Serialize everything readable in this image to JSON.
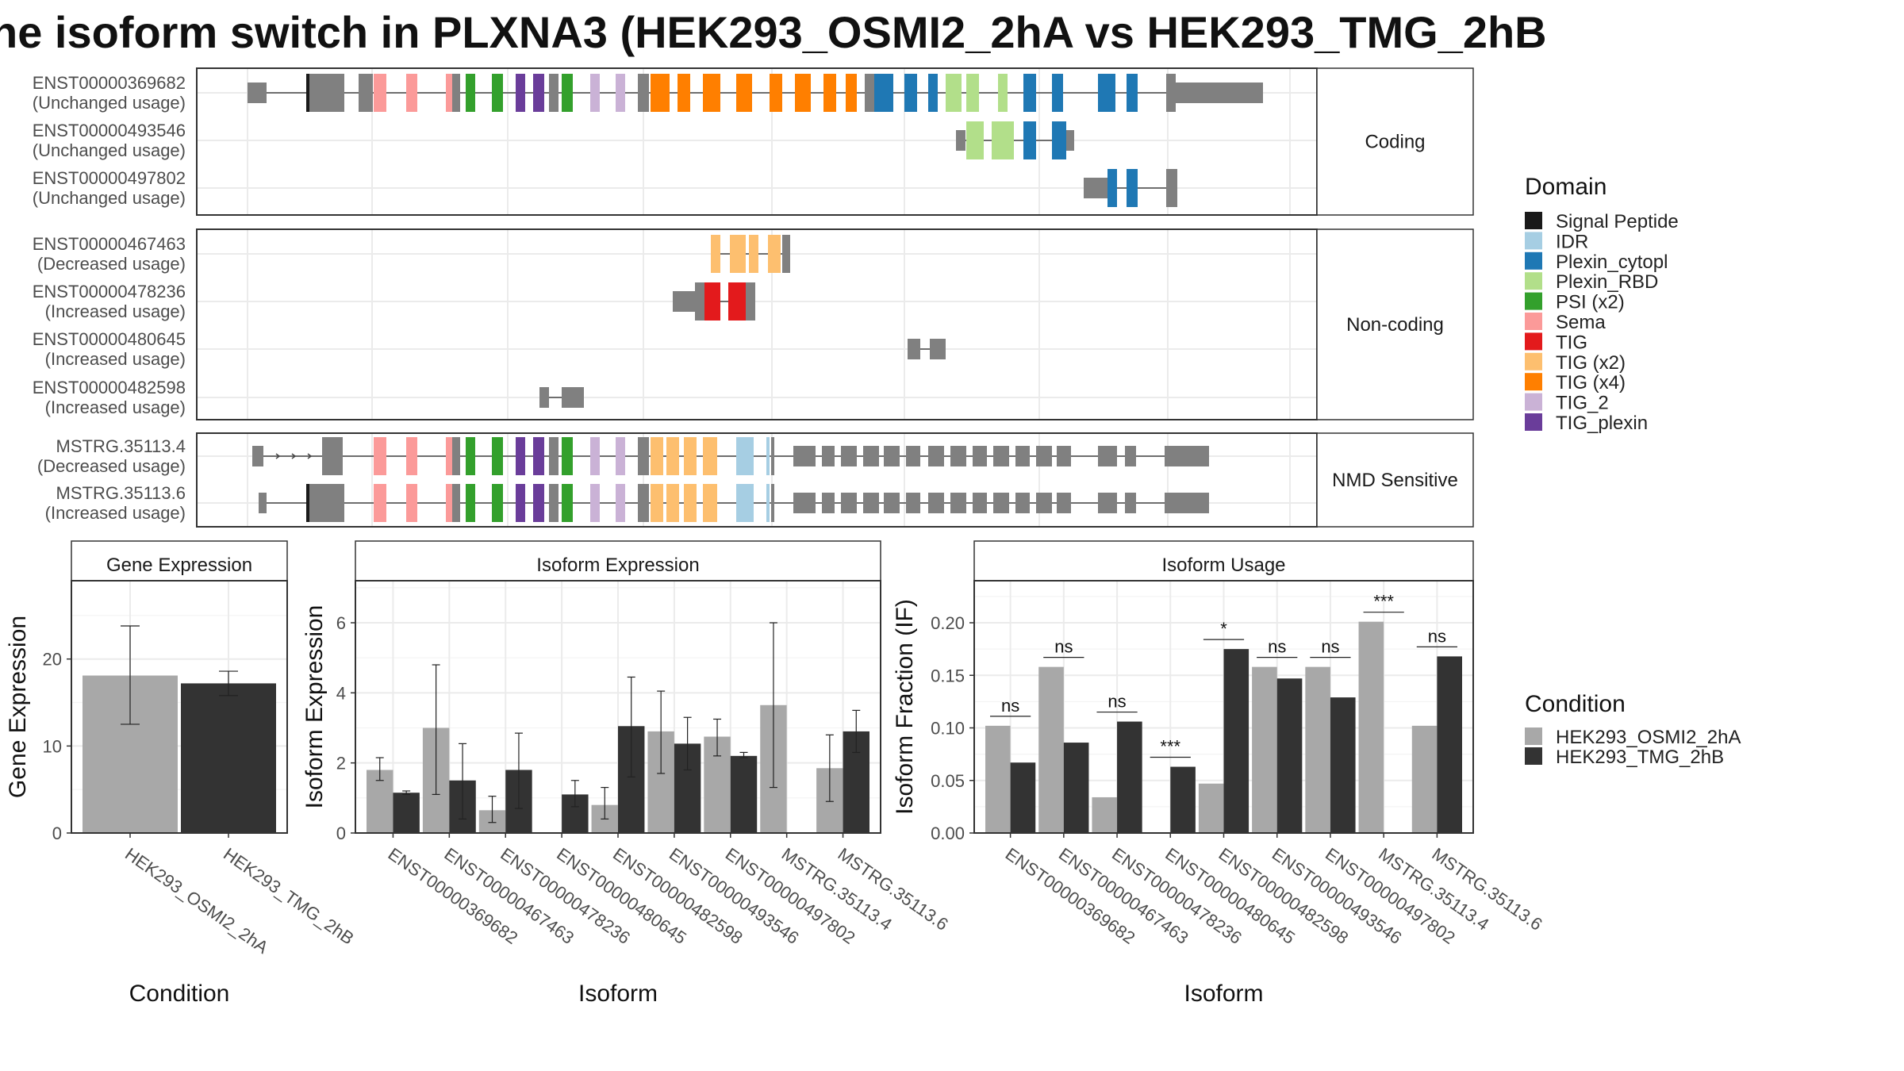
{
  "title": "he isoform switch in PLXNA3 (HEK293_OSMI2_2hA vs HEK293_TMG_2hB",
  "colors": {
    "cond_a": "#a8a8a8",
    "cond_b": "#333333",
    "exon": "#808080",
    "grid": "#ebebeb",
    "strip": "#ffffff"
  },
  "domain_legend": {
    "title": "Domain",
    "items": [
      {
        "label": "Signal Peptide",
        "color": "#1a1a1a"
      },
      {
        "label": "IDR",
        "color": "#a6cee3"
      },
      {
        "label": "Plexin_cytopl",
        "color": "#1f78b4"
      },
      {
        "label": "Plexin_RBD",
        "color": "#b2df8a"
      },
      {
        "label": "PSI (x2)",
        "color": "#33a02c"
      },
      {
        "label": "Sema",
        "color": "#fb9a99"
      },
      {
        "label": "TIG",
        "color": "#e31a1c"
      },
      {
        "label": "TIG (x2)",
        "color": "#fdbf6f"
      },
      {
        "label": "TIG (x4)",
        "color": "#ff7f00"
      },
      {
        "label": "TIG_2",
        "color": "#cab2d6"
      },
      {
        "label": "TIG_plexin",
        "color": "#6a3d9a"
      }
    ]
  },
  "condition_legend": {
    "title": "Condition",
    "items": [
      {
        "label": "HEK293_OSMI2_2hA",
        "color": "#a8a8a8"
      },
      {
        "label": "HEK293_TMG_2hB",
        "color": "#333333"
      }
    ]
  },
  "transcript_panels": [
    {
      "strip": "Coding",
      "transcripts": [
        {
          "id": "ENST00000369682",
          "usage": "(Unchanged usage)"
        },
        {
          "id": "ENST00000493546",
          "usage": "(Unchanged usage)"
        },
        {
          "id": "ENST00000497802",
          "usage": "(Unchanged usage)"
        }
      ]
    },
    {
      "strip": "Non-coding",
      "transcripts": [
        {
          "id": "ENST00000467463",
          "usage": "(Decreased usage)"
        },
        {
          "id": "ENST00000478236",
          "usage": "(Increased usage)"
        },
        {
          "id": "ENST00000480645",
          "usage": "(Increased usage)"
        },
        {
          "id": "ENST00000482598",
          "usage": "(Increased usage)"
        }
      ]
    },
    {
      "strip": "NMD Sensitive",
      "transcripts": [
        {
          "id": "MSTRG.35113.4",
          "usage": "(Decreased usage)"
        },
        {
          "id": "MSTRG.35113.6",
          "usage": "(Increased usage)"
        }
      ]
    }
  ],
  "chart_data": [
    {
      "type": "bar",
      "title": "Gene Expression",
      "xlabel": "Condition",
      "ylabel": "Gene Expression",
      "ylim": [
        0,
        29
      ],
      "yticks": [
        0,
        10,
        20
      ],
      "categories": [
        "HEK293_OSMI2_2hA",
        "HEK293_TMG_2hB"
      ],
      "values": [
        18.1,
        17.2
      ],
      "error_low": [
        12.5,
        15.8
      ],
      "error_high": [
        23.8,
        18.6
      ]
    },
    {
      "type": "bar",
      "title": "Isoform Expression",
      "xlabel": "Isoform",
      "ylabel": "Isoform Expression",
      "ylim": [
        0,
        7.2
      ],
      "yticks": [
        0,
        2,
        4,
        6
      ],
      "categories": [
        "ENST00000369682",
        "ENST00000467463",
        "ENST00000478236",
        "ENST00000480645",
        "ENST00000482598",
        "ENST00000493546",
        "ENST00000497802",
        "MSTRG.35113.4",
        "MSTRG.35113.6"
      ],
      "series": [
        {
          "name": "HEK293_OSMI2_2hA",
          "values": [
            1.8,
            3.0,
            0.65,
            0.0,
            0.8,
            2.9,
            2.75,
            3.65,
            1.85
          ],
          "error_low": [
            1.5,
            1.1,
            0.3,
            0.0,
            0.4,
            1.7,
            2.2,
            1.3,
            0.9
          ],
          "error_high": [
            2.15,
            4.8,
            1.05,
            0.0,
            1.3,
            4.05,
            3.25,
            6.0,
            2.8
          ]
        },
        {
          "name": "HEK293_TMG_2hB",
          "values": [
            1.15,
            1.5,
            1.8,
            1.1,
            3.05,
            2.55,
            2.2,
            0.0,
            2.9
          ],
          "error_low": [
            1.1,
            0.4,
            0.7,
            0.75,
            1.6,
            1.8,
            2.15,
            0.0,
            2.3
          ],
          "error_high": [
            1.2,
            2.55,
            2.85,
            1.5,
            4.45,
            3.3,
            2.3,
            0.0,
            3.5
          ]
        }
      ]
    },
    {
      "type": "bar",
      "title": "Isoform Usage",
      "xlabel": "Isoform",
      "ylabel": "Isoform Fraction (IF)",
      "ylim": [
        0,
        0.24
      ],
      "yticks": [
        "0.00",
        "0.05",
        "0.10",
        "0.15",
        "0.20"
      ],
      "categories": [
        "ENST00000369682",
        "ENST00000467463",
        "ENST00000478236",
        "ENST00000480645",
        "ENST00000482598",
        "ENST00000493546",
        "ENST00000497802",
        "MSTRG.35113.4",
        "MSTRG.35113.6"
      ],
      "series": [
        {
          "name": "HEK293_OSMI2_2hA",
          "values": [
            0.102,
            0.158,
            0.034,
            0.0,
            0.047,
            0.158,
            0.158,
            0.201,
            0.102
          ]
        },
        {
          "name": "HEK293_TMG_2hB",
          "values": [
            0.067,
            0.086,
            0.106,
            0.063,
            0.175,
            0.147,
            0.129,
            0.0,
            0.168
          ]
        }
      ],
      "significance": [
        "ns",
        "ns",
        "ns",
        "***",
        "*",
        "ns",
        "ns",
        "***",
        "ns"
      ]
    }
  ]
}
